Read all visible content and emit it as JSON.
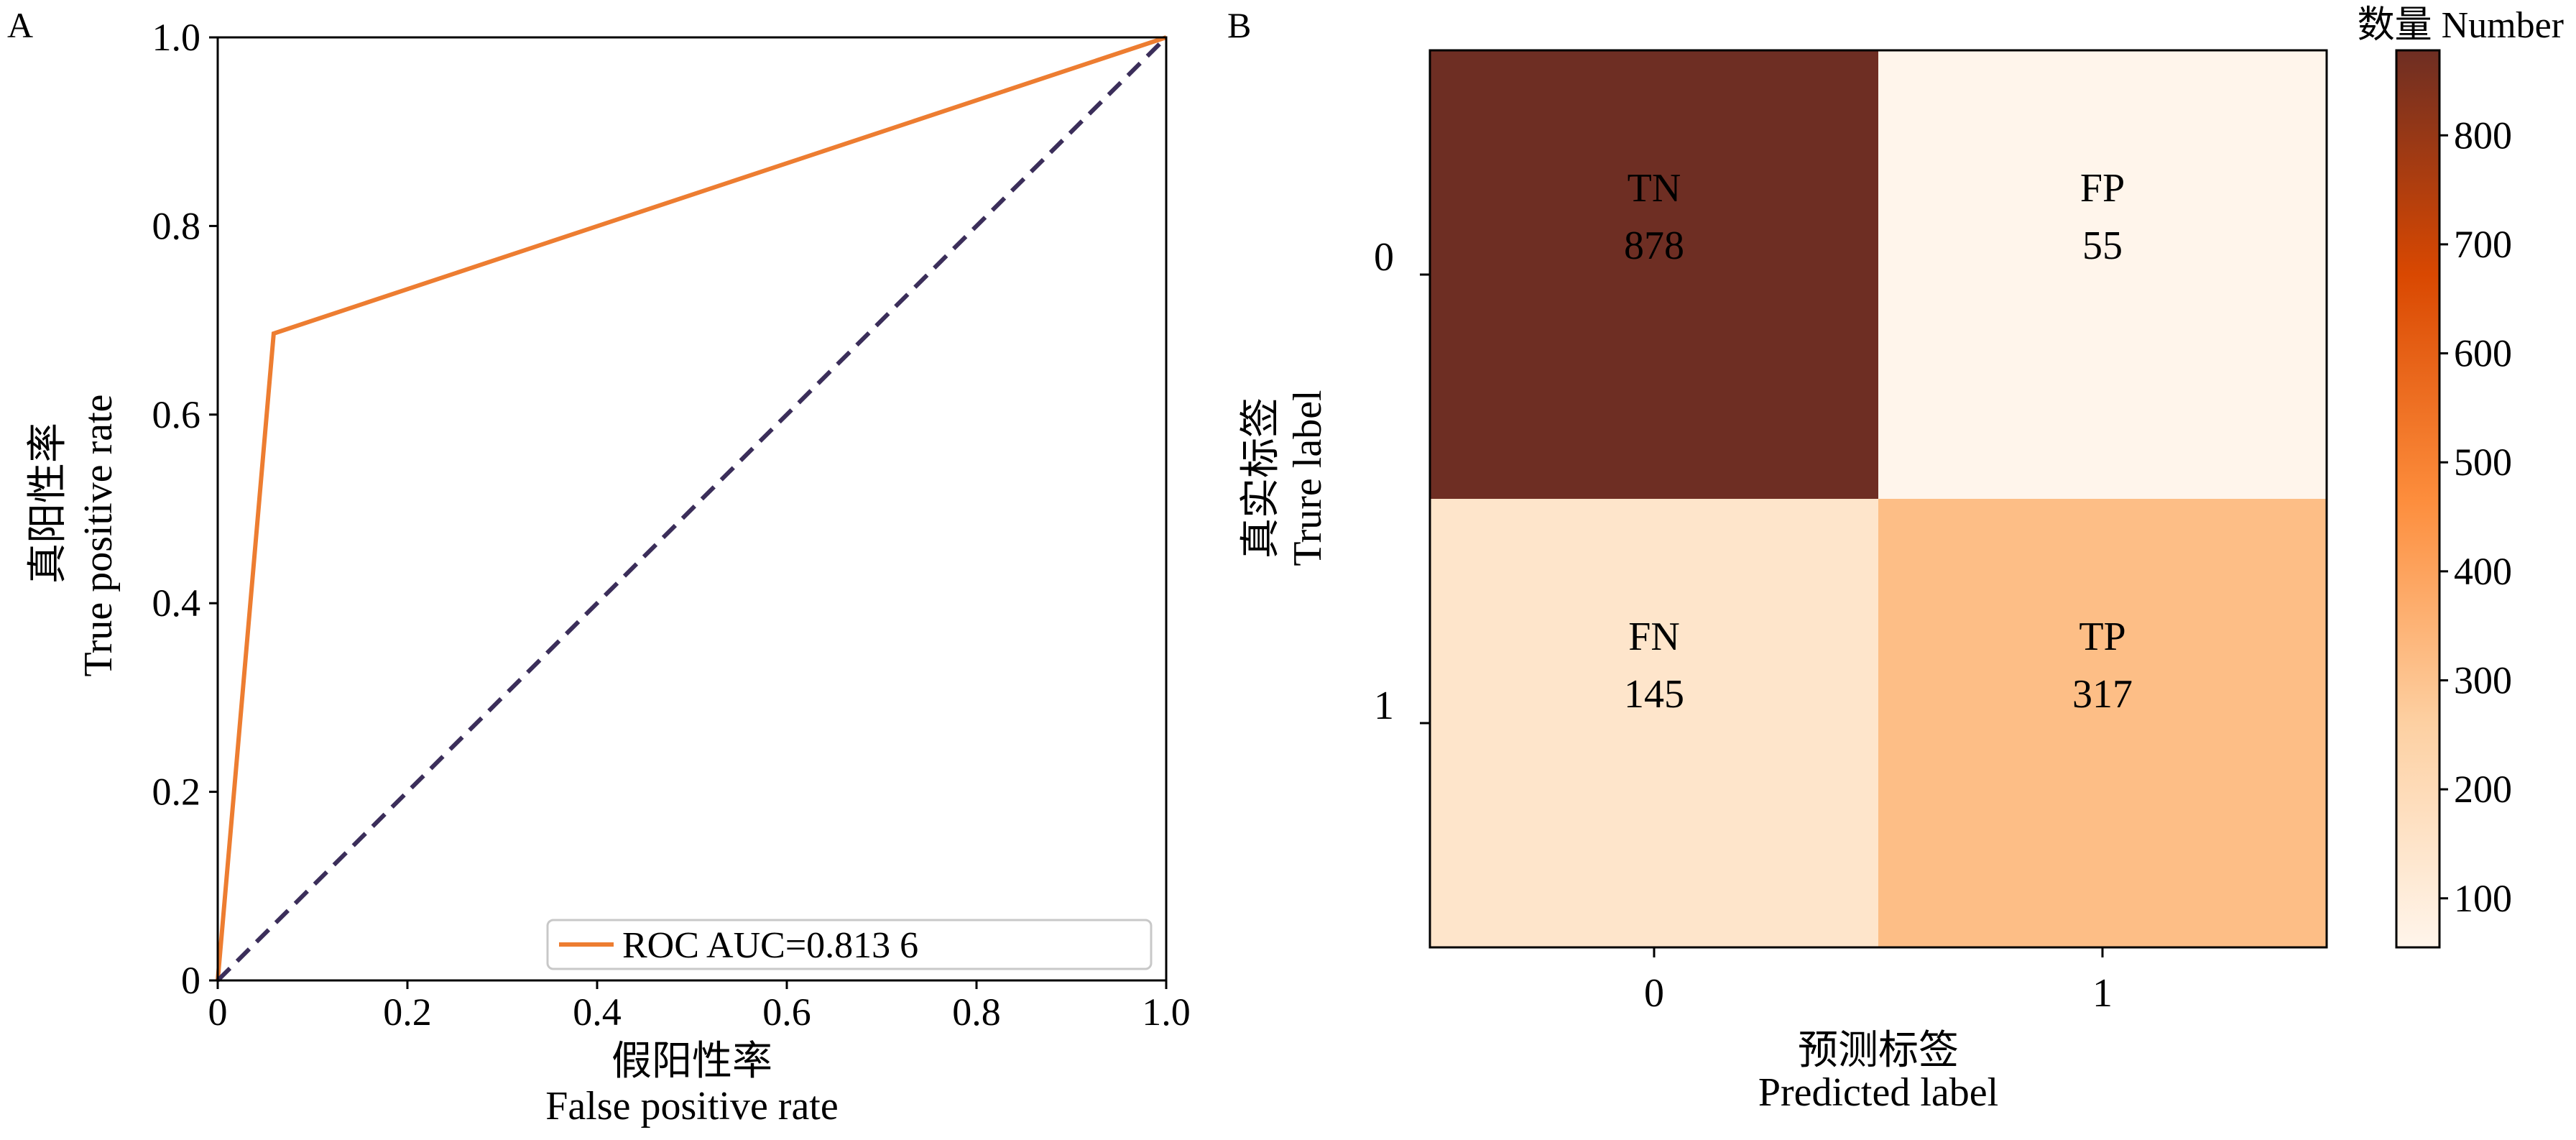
{
  "chart_data": [
    {
      "panel_label": "A",
      "type": "line",
      "xlabel_zh": "假阳性率",
      "xlabel_en": "False positive rate",
      "ylabel_zh": "真阳性率",
      "ylabel_en": "True positive rate",
      "xlim": [
        0,
        1.0
      ],
      "ylim": [
        0,
        1.0
      ],
      "x_ticks": [
        "0",
        "0.2",
        "0.4",
        "0.6",
        "0.8",
        "1.0"
      ],
      "y_ticks": [
        "0",
        "0.2",
        "0.4",
        "0.6",
        "0.8",
        "1.0"
      ],
      "grid": false,
      "legend_position": "bottom-right",
      "series": [
        {
          "name": "ROC AUC=0.813 6",
          "color": "#ED7D31",
          "style": "solid",
          "x": [
            0,
            0.059,
            1.0
          ],
          "y": [
            0,
            0.686,
            1.0
          ]
        },
        {
          "color": "#3B2E5A",
          "style": "dashed",
          "x": [
            0,
            1.0
          ],
          "y": [
            0,
            1.0
          ]
        }
      ]
    },
    {
      "panel_label": "B",
      "type": "heatmap",
      "xlabel_zh": "预测标签",
      "xlabel_en": "Predicted label",
      "ylabel_zh": "真实标签",
      "ylabel_en": "Trure label",
      "x_categories": [
        "0",
        "1"
      ],
      "y_categories": [
        "0",
        "1"
      ],
      "cells": [
        [
          {
            "tag": "TN",
            "value": 878
          },
          {
            "tag": "FP",
            "value": 55
          }
        ],
        [
          {
            "tag": "FN",
            "value": 145
          },
          {
            "tag": "TP",
            "value": 317
          }
        ]
      ],
      "colorbar": {
        "title": "数量 Number",
        "min": 55,
        "max": 878,
        "ticks": [
          "100",
          "200",
          "300",
          "400",
          "500",
          "600",
          "700",
          "800"
        ],
        "tick_values": [
          100,
          200,
          300,
          400,
          500,
          600,
          700,
          800
        ],
        "colormap": [
          "#FFF5EB",
          "#FDD0A2",
          "#FD8D3C",
          "#D94801",
          "#6E2E23"
        ]
      }
    }
  ]
}
